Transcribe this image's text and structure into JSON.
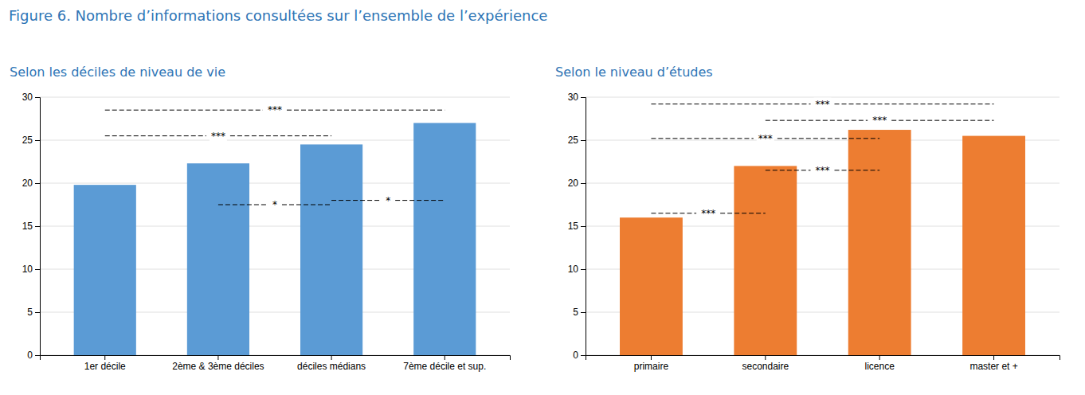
{
  "title": "Figure 6. Nombre d’informations consultées sur l’ensemble de l’expérience",
  "chart_data": [
    {
      "type": "bar",
      "subtitle": "Selon les déciles de niveau de vie",
      "categories": [
        "1er décile",
        "2ème & 3ème déciles",
        "déciles médians",
        "7ème décile et sup."
      ],
      "values": [
        19.8,
        22.3,
        24.5,
        27.0
      ],
      "color": "#5B9BD5",
      "ylim": [
        0,
        30
      ],
      "yticks": [
        0,
        5,
        10,
        15,
        20,
        25,
        30
      ],
      "grid": true,
      "annotations": [
        {
          "label": "***",
          "from": "1er décile",
          "to": "7ème décile et sup.",
          "y": 28.5
        },
        {
          "label": "***",
          "from": "1er décile",
          "to": "déciles médians",
          "y": 25.5
        },
        {
          "label": "*",
          "from": "2ème & 3ème déciles",
          "to": "déciles médians",
          "y": 17.5
        },
        {
          "label": "*",
          "from": "déciles médians",
          "to": "7ème décile et sup.",
          "y": 18.0
        }
      ]
    },
    {
      "type": "bar",
      "subtitle": "Selon le niveau d’études",
      "categories": [
        "primaire",
        "secondaire",
        "licence",
        "master et +"
      ],
      "values": [
        16.0,
        22.0,
        26.2,
        25.5
      ],
      "color": "#ED7D31",
      "ylim": [
        0,
        30
      ],
      "yticks": [
        0,
        5,
        10,
        15,
        20,
        25,
        30
      ],
      "grid": true,
      "annotations": [
        {
          "label": "***",
          "from": "primaire",
          "to": "master et +",
          "y": 29.2
        },
        {
          "label": "***",
          "from": "secondaire",
          "to": "master et +",
          "y": 27.3
        },
        {
          "label": "***",
          "from": "primaire",
          "to": "licence",
          "y": 25.2
        },
        {
          "label": "***",
          "from": "secondaire",
          "to": "licence",
          "y": 21.5
        },
        {
          "label": "***",
          "from": "primaire",
          "to": "secondaire",
          "y": 16.5
        }
      ]
    }
  ]
}
